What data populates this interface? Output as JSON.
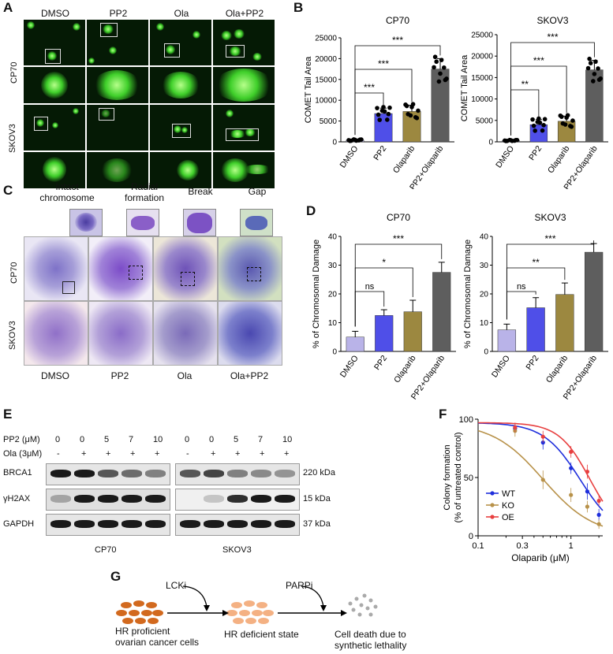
{
  "panels": {
    "a": "A",
    "b": "B",
    "c": "C",
    "d": "D",
    "e": "E",
    "f": "F",
    "g": "G"
  },
  "panelA": {
    "columns": [
      "DMSO",
      "PP2",
      "Ola",
      "Ola+PP2"
    ],
    "rows": [
      "CP70",
      "SKOV3"
    ]
  },
  "panelC": {
    "top_labels": [
      "Intact chromosome",
      "Radial formation",
      "Break",
      "Gap"
    ],
    "bottom_labels": [
      "DMSO",
      "PP2",
      "Ola",
      "Ola+PP2"
    ],
    "rows": [
      "CP70",
      "SKOV3"
    ]
  },
  "panelE": {
    "pp2_label": "PP2 (μM)",
    "ola_label": "Ola (3μM)",
    "pp2_values": [
      "0",
      "0",
      "5",
      "7",
      "10"
    ],
    "ola_values": [
      "-",
      "+",
      "+",
      "+",
      "+"
    ],
    "proteins": [
      "BRCA1",
      "γH2AX",
      "GAPDH"
    ],
    "sizes": [
      "220 kDa",
      "15 kDa",
      "37 kDa"
    ],
    "cell_lines": [
      "CP70",
      "SKOV3"
    ]
  },
  "panelG": {
    "step1": "HR proficient ovarian cancer cells",
    "step1a": "HR proficient",
    "step1b": "ovarian cancer cells",
    "drug1": "LCKi",
    "step2": "HR deficient state",
    "drug2": "PARPi",
    "step3a": "Cell death due to",
    "step3b": "synthetic lethality"
  },
  "chart_data": [
    {
      "id": "B-CP70",
      "type": "bar",
      "title": "CP70",
      "ylabel": "COMET Tail Area",
      "categories": [
        "DMSO",
        "PP2",
        "Olaparib",
        "PP2+Olaparib"
      ],
      "values": [
        400,
        6800,
        7300,
        17500
      ],
      "errors": [
        150,
        1300,
        1500,
        2500
      ],
      "ylim": [
        0,
        25000
      ],
      "yticks": [
        "0",
        "5000",
        "10000",
        "15000",
        "20000",
        "25000"
      ],
      "colors": [
        "#b9b3e8",
        "#4f4fe8",
        "#9c8840",
        "#5e5e5e"
      ],
      "significance": [
        "***",
        "***",
        "***"
      ]
    },
    {
      "id": "B-SKOV3",
      "type": "bar",
      "title": "SKOV3",
      "ylabel": "COMET Tail Area",
      "categories": [
        "DMSO",
        "PP2",
        "Olaparib",
        "PP2+Olaparib"
      ],
      "values": [
        300,
        4000,
        4800,
        16800
      ],
      "errors": [
        100,
        1200,
        1200,
        2200
      ],
      "ylim": [
        0,
        25000
      ],
      "yticks": [
        "0",
        "5000",
        "10000",
        "15000",
        "20000",
        "25000"
      ],
      "colors": [
        "#b9b3e8",
        "#4f4fe8",
        "#9c8840",
        "#5e5e5e"
      ],
      "significance": [
        "**",
        "***",
        "***"
      ]
    },
    {
      "id": "D-CP70",
      "type": "bar",
      "title": "CP70",
      "ylabel": "% of Chromosomal Damage",
      "categories": [
        "DMSO",
        "PP2",
        "Olaparib",
        "PP2+Olaparib"
      ],
      "values": [
        5,
        12.5,
        13.8,
        27.5
      ],
      "errors": [
        2,
        2,
        4,
        3.5
      ],
      "ylim": [
        0,
        40
      ],
      "yticks": [
        "0",
        "10",
        "20",
        "30",
        "40"
      ],
      "colors": [
        "#b9b3e8",
        "#4f4fe8",
        "#9c8840",
        "#5e5e5e"
      ],
      "significance": [
        "ns",
        "*",
        "***"
      ]
    },
    {
      "id": "D-SKOV3",
      "type": "bar",
      "title": "SKOV3",
      "ylabel": "% of Chromosomal Damage",
      "categories": [
        "DMSO",
        "PP2",
        "Olaparib",
        "PP2+Olaparib"
      ],
      "values": [
        7.5,
        15.2,
        19.8,
        34.5
      ],
      "errors": [
        2,
        3.5,
        4,
        3
      ],
      "ylim": [
        0,
        40
      ],
      "yticks": [
        "0",
        "10",
        "20",
        "30",
        "40"
      ],
      "colors": [
        "#b9b3e8",
        "#4f4fe8",
        "#9c8840",
        "#5e5e5e"
      ],
      "significance": [
        "ns",
        "**",
        "***"
      ]
    },
    {
      "id": "F",
      "type": "line",
      "xlabel": "Olaparib (μM)",
      "ylabel": "Colony formation",
      "ylabel2": "(% of untreated control)",
      "x_scale": "log",
      "xlim": [
        0.1,
        2.2
      ],
      "ylim": [
        0,
        100
      ],
      "xticks": [
        "0.1",
        "0.3",
        "1"
      ],
      "yticks": [
        "0",
        "50",
        "100"
      ],
      "legend_position": "left",
      "series": [
        {
          "name": "WT",
          "color": "#1f2fdc",
          "x": [
            0.25,
            0.5,
            1,
            1.5,
            2
          ],
          "y": [
            92,
            80,
            58,
            38,
            18
          ],
          "err": [
            4,
            6,
            5,
            7,
            5
          ]
        },
        {
          "name": "KO",
          "color": "#b8924a",
          "x": [
            0.25,
            0.5,
            1,
            1.5,
            2
          ],
          "y": [
            90,
            48,
            35,
            25,
            10
          ],
          "err": [
            5,
            8,
            6,
            5,
            4
          ]
        },
        {
          "name": "OE",
          "color": "#e84040",
          "x": [
            0.25,
            0.5,
            1,
            1.5,
            2
          ],
          "y": [
            93,
            85,
            72,
            55,
            30
          ],
          "err": [
            4,
            5,
            5,
            6,
            4
          ]
        }
      ]
    }
  ]
}
